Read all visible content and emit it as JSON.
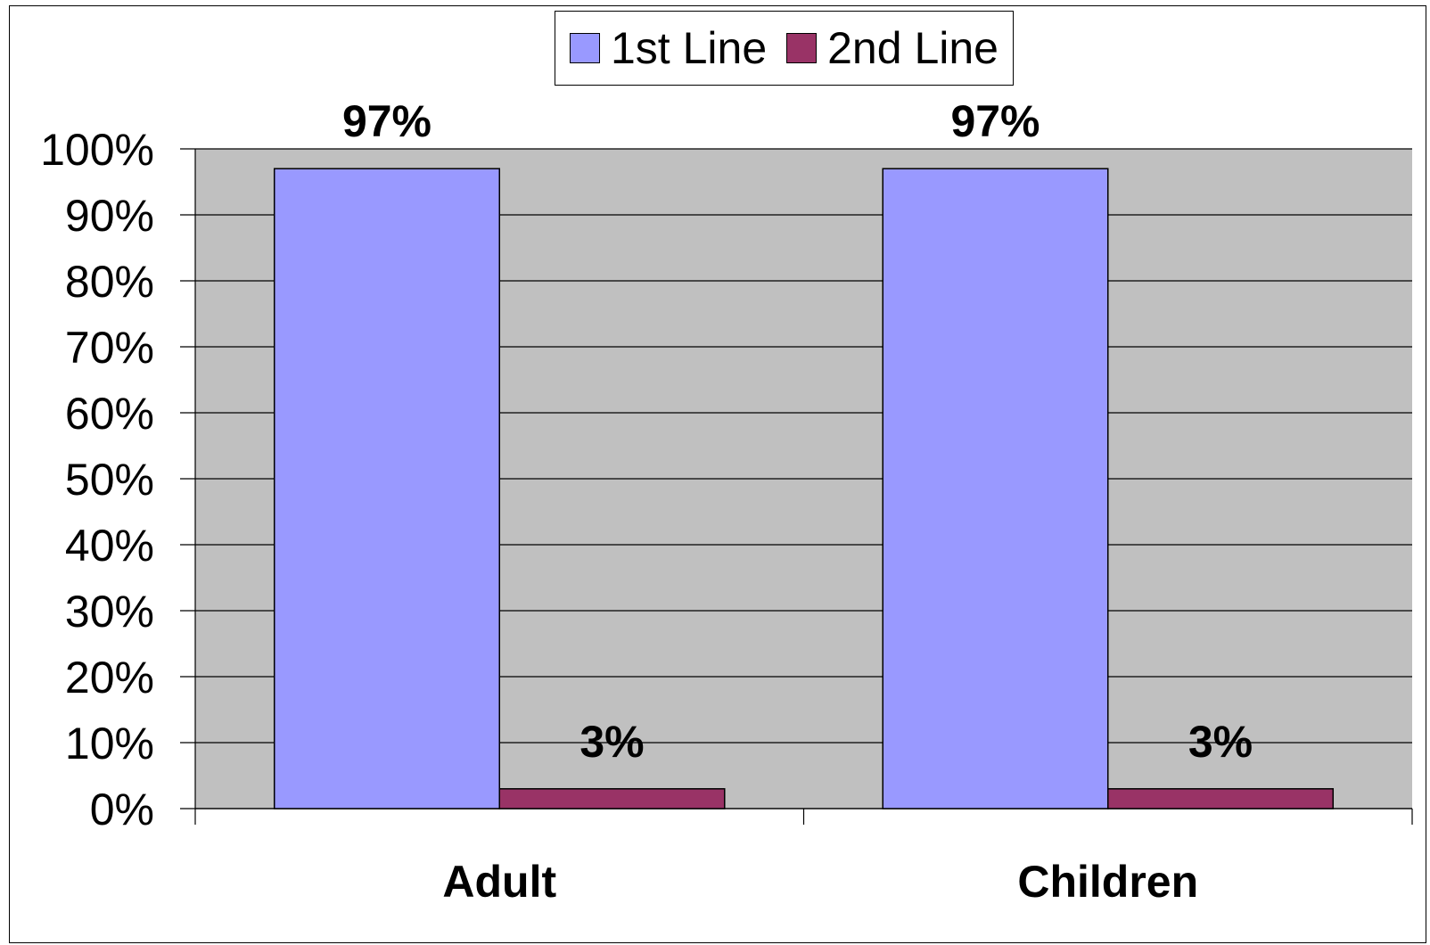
{
  "chart_data": {
    "type": "bar",
    "title": "",
    "xlabel": "",
    "ylabel": "",
    "categories": [
      "Adult",
      "Children"
    ],
    "series": [
      {
        "name": "1st Line",
        "values": [
          97,
          97
        ],
        "labels": [
          "97%",
          "97%"
        ],
        "color": "#9999ff"
      },
      {
        "name": "2nd Line",
        "values": [
          3,
          3
        ],
        "labels": [
          "3%",
          "3%"
        ],
        "color": "#993366"
      }
    ],
    "ylim": [
      0,
      100
    ],
    "yticks": [
      0,
      10,
      20,
      30,
      40,
      50,
      60,
      70,
      80,
      90,
      100
    ],
    "ytick_labels": [
      "0%",
      "10%",
      "20%",
      "30%",
      "40%",
      "50%",
      "60%",
      "70%",
      "80%",
      "90%",
      "100%"
    ],
    "grid": true,
    "legend_position": "top-center",
    "plot_background": "#c0c0c0"
  }
}
